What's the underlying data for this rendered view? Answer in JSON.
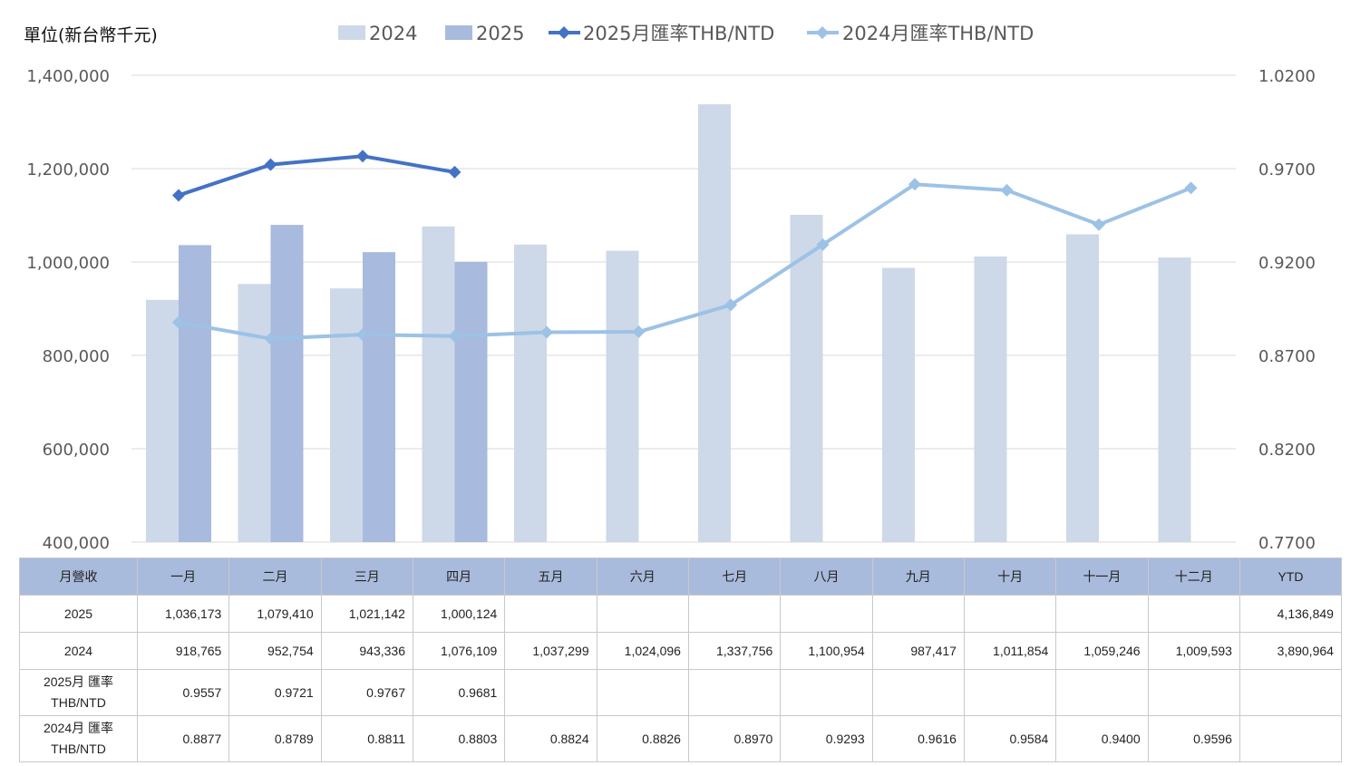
{
  "unit_label": "單位(新台幣千元)",
  "colors": {
    "bar2024": "#cdd8e9",
    "bar2025": "#a8badd",
    "line2025": "#4472c4",
    "line2024": "#9cc2e6",
    "grid": "#d9d9d9",
    "header": "#a9bbdc"
  },
  "chart_data": {
    "type": "bar",
    "categories": [
      "一月",
      "二月",
      "三月",
      "四月",
      "五月",
      "六月",
      "七月",
      "八月",
      "九月",
      "十月",
      "十一月",
      "十二月"
    ],
    "series": [
      {
        "name": "2024",
        "type": "bar",
        "axis": "left",
        "values": [
          918765,
          952754,
          943336,
          1076109,
          1037299,
          1024096,
          1337756,
          1100954,
          987417,
          1011854,
          1059246,
          1009593
        ]
      },
      {
        "name": "2025",
        "type": "bar",
        "axis": "left",
        "values": [
          1036173,
          1079410,
          1021142,
          1000124,
          null,
          null,
          null,
          null,
          null,
          null,
          null,
          null
        ]
      },
      {
        "name": "2025月匯率THB/NTD",
        "type": "line",
        "axis": "right",
        "values": [
          0.9557,
          0.9721,
          0.9767,
          0.9681,
          null,
          null,
          null,
          null,
          null,
          null,
          null,
          null
        ]
      },
      {
        "name": "2024月匯率THB/NTD",
        "type": "line",
        "axis": "right",
        "values": [
          0.8877,
          0.8789,
          0.8811,
          0.8803,
          0.8824,
          0.8826,
          0.897,
          0.9293,
          0.9616,
          0.9584,
          0.94,
          0.9596
        ]
      }
    ],
    "ylim": [
      400000,
      1400000
    ],
    "y_ticks": [
      "400,000",
      "600,000",
      "800,000",
      "1,000,000",
      "1,200,000",
      "1,400,000"
    ],
    "y2lim": [
      0.77,
      1.02
    ],
    "y2_ticks": [
      "0.7700",
      "0.8200",
      "0.8700",
      "0.9200",
      "0.9700",
      "1.0200"
    ],
    "grid": true,
    "legend": "top-center"
  },
  "table": {
    "header": [
      "月營收",
      "一月",
      "二月",
      "三月",
      "四月",
      "五月",
      "六月",
      "七月",
      "八月",
      "九月",
      "十月",
      "十一月",
      "十二月",
      "YTD"
    ],
    "rows": [
      {
        "label": "2025",
        "cells": [
          "1,036,173",
          "1,079,410",
          "1,021,142",
          "1,000,124",
          "",
          "",
          "",
          "",
          "",
          "",
          "",
          "",
          "4,136,849"
        ]
      },
      {
        "label": "2024",
        "cells": [
          "918,765",
          "952,754",
          "943,336",
          "1,076,109",
          "1,037,299",
          "1,024,096",
          "1,337,756",
          "1,100,954",
          "987,417",
          "1,011,854",
          "1,059,246",
          "1,009,593",
          "3,890,964"
        ]
      },
      {
        "label_line1": "2025月 匯率",
        "label_line2": "THB/NTD",
        "cells": [
          "0.9557",
          "0.9721",
          "0.9767",
          "0.9681",
          "",
          "",
          "",
          "",
          "",
          "",
          "",
          "",
          ""
        ]
      },
      {
        "label_line1": "2024月 匯率",
        "label_line2": "THB/NTD",
        "cells": [
          "0.8877",
          "0.8789",
          "0.8811",
          "0.8803",
          "0.8824",
          "0.8826",
          "0.8970",
          "0.9293",
          "0.9616",
          "0.9584",
          "0.9400",
          "0.9596",
          ""
        ]
      }
    ]
  }
}
